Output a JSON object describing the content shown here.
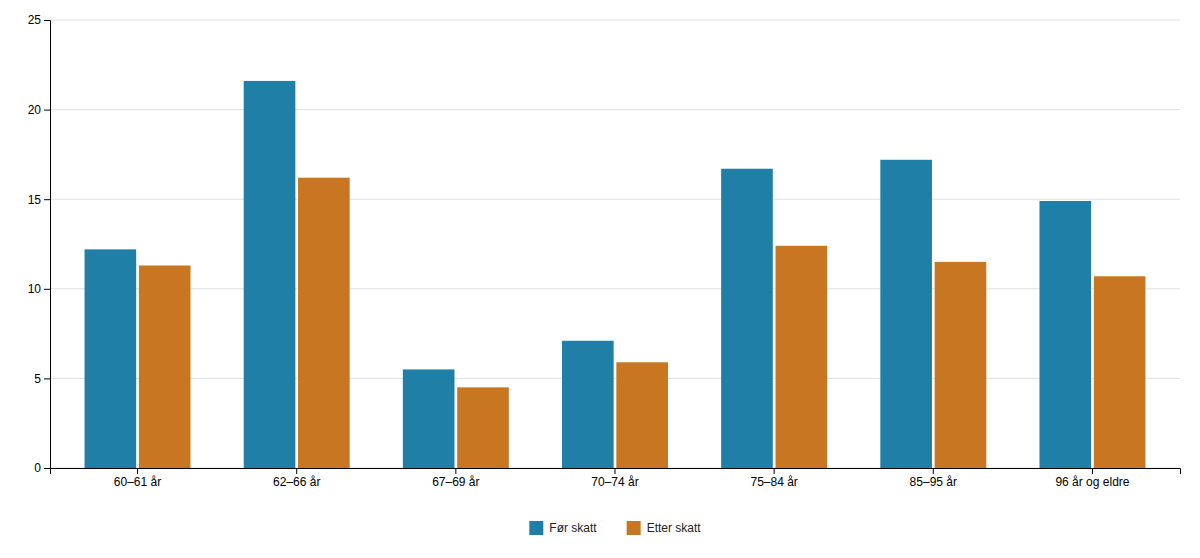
{
  "chart_data": {
    "type": "bar",
    "categories": [
      "60–61 år",
      "62–66 år",
      "67–69 år",
      "70–74 år",
      "75–84 år",
      "85–95 år",
      "96 år og eldre"
    ],
    "series": [
      {
        "name": "Før skatt",
        "color": "#1f7fa6",
        "values": [
          12.2,
          21.6,
          5.5,
          7.1,
          16.7,
          17.2,
          14.9
        ]
      },
      {
        "name": "Etter skatt",
        "color": "#c87622",
        "values": [
          11.3,
          16.2,
          4.5,
          5.9,
          12.4,
          11.5,
          10.7
        ]
      }
    ],
    "ylim": [
      0,
      25
    ],
    "yticks": [
      0,
      5,
      10,
      15,
      20,
      25
    ],
    "grid": true,
    "legend": "bottom"
  }
}
